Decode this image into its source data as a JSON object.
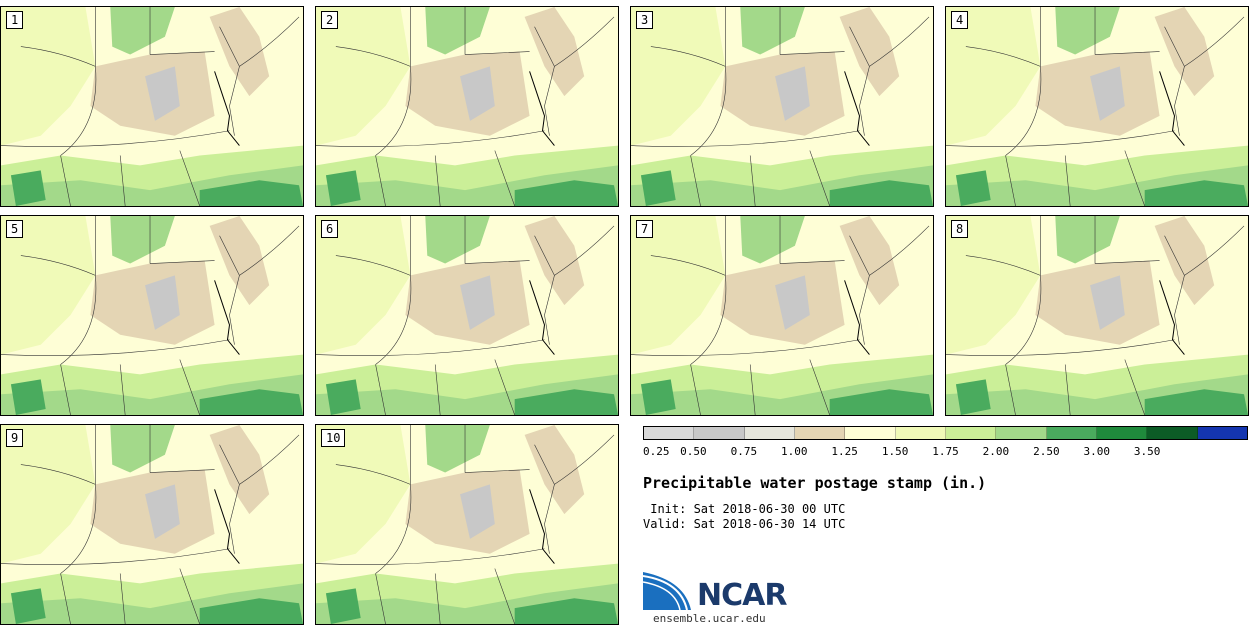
{
  "panels": [
    "1",
    "2",
    "3",
    "4",
    "5",
    "6",
    "7",
    "8",
    "9",
    "10"
  ],
  "legend": {
    "colors": [
      "#d9d9d9",
      "#c8c8c8",
      "#e6e6dc",
      "#e4d5b4",
      "#fefed6",
      "#f0fab8",
      "#cbef98",
      "#a3d98a",
      "#4aab5e",
      "#1f8a3c",
      "#0c5c26",
      "#1435b0"
    ],
    "ticks": [
      "0.25",
      "0.50",
      "0.75",
      "1.00",
      "1.25",
      "1.50",
      "1.75",
      "2.00",
      "2.50",
      "3.00",
      "3.50"
    ]
  },
  "title": "Precipitable water postage stamp (in.)",
  "init": " Init: Sat 2018-06-30 00 UTC",
  "valid": "Valid: Sat 2018-06-30 14 UTC",
  "logo": {
    "text": "NCAR",
    "colors": [
      "#1a6fbf",
      "#0b4e8c"
    ]
  },
  "url": "ensemble.ucar.edu"
}
